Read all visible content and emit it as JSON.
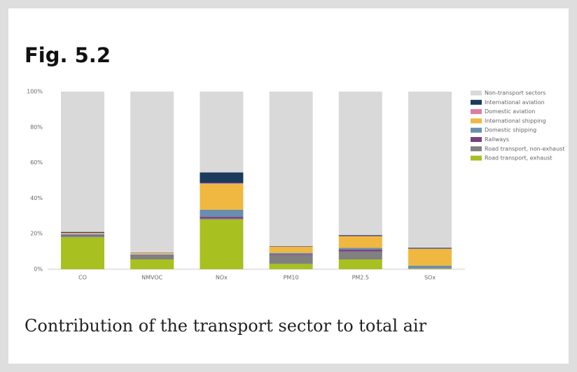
{
  "heading": "Fig. 5.2",
  "caption": "Contribution of the transport sector to total air",
  "chart_data": {
    "type": "stacked_bar",
    "categories": [
      "CO",
      "NMVOC",
      "NOx",
      "PM10",
      "PM2.5",
      "SOx"
    ],
    "series": [
      {
        "name": "Non-transport sectors",
        "color": "#d9d9d9",
        "values": [
          79,
          90.7,
          45.5,
          87,
          80.8,
          87.9
        ]
      },
      {
        "name": "International aviation",
        "color": "#1b3a5c",
        "values": [
          0.5,
          0.2,
          6,
          0.2,
          0.5,
          0.5
        ]
      },
      {
        "name": "Domestic aviation",
        "color": "#e07ba3",
        "values": [
          0.2,
          0.1,
          0.5,
          0.1,
          0.2,
          0.1
        ]
      },
      {
        "name": "International shipping",
        "color": "#f0b840",
        "values": [
          0.5,
          0.7,
          14.5,
          3.5,
          6.5,
          9.5
        ]
      },
      {
        "name": "Domestic shipping",
        "color": "#6a8eae",
        "values": [
          0.5,
          0.5,
          4,
          0.7,
          1,
          1.3
        ]
      },
      {
        "name": "Railways",
        "color": "#7b3f7a",
        "values": [
          0.3,
          0.3,
          1,
          0.5,
          1,
          0.2
        ]
      },
      {
        "name": "Road transport, non-exhaust",
        "color": "#808080",
        "values": [
          1,
          2,
          0.5,
          5,
          4.5,
          0.2
        ]
      },
      {
        "name": "Road transport, exhaust",
        "color": "#a8c020",
        "values": [
          18,
          5.5,
          28,
          3,
          5.5,
          0.3
        ]
      }
    ],
    "ylim": [
      0,
      100
    ],
    "yticks": [
      {
        "value": 0,
        "label": "0%"
      },
      {
        "value": 20,
        "label": "20%"
      },
      {
        "value": 40,
        "label": "40%"
      },
      {
        "value": 60,
        "label": "60%"
      },
      {
        "value": 80,
        "label": "80%"
      },
      {
        "value": 100,
        "label": "100%"
      }
    ]
  }
}
